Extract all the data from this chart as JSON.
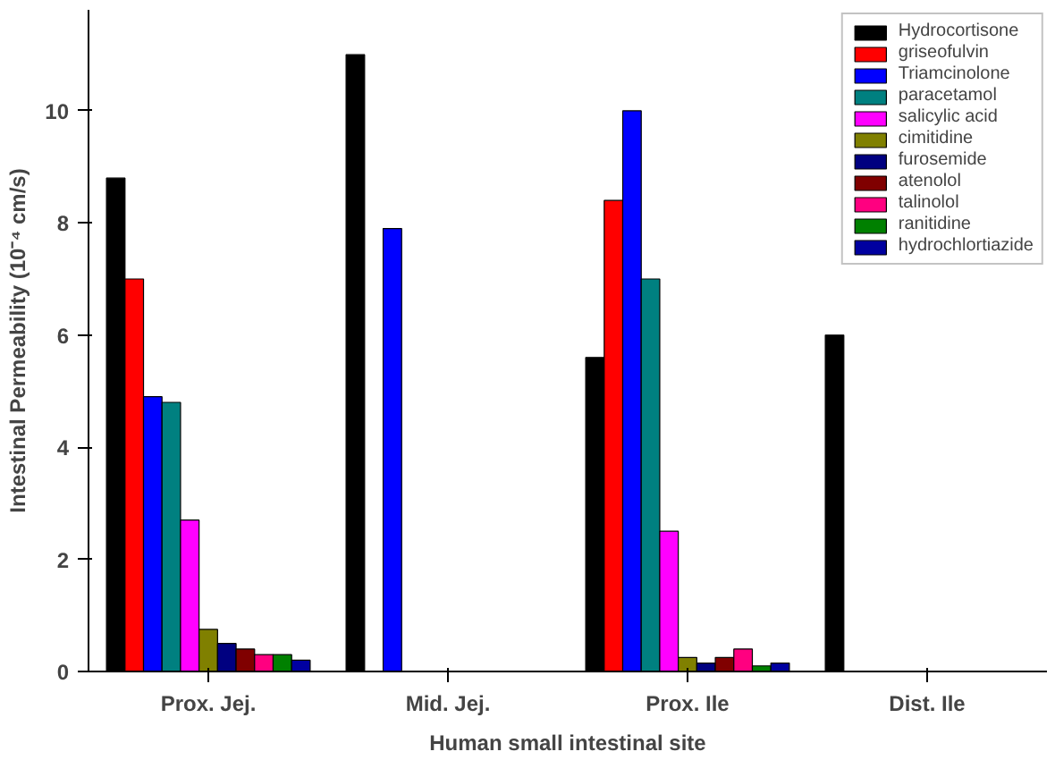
{
  "chart_data": {
    "type": "bar",
    "xlabel": "Human small intestinal site",
    "ylabel": "Intestinal Permeability (10⁻⁴ cm/s)",
    "categories": [
      "Prox. Jej.",
      "Mid. Jej.",
      "Prox. Ile",
      "Dist. Ile"
    ],
    "ylim": [
      0,
      11.8
    ],
    "yticks": [
      0,
      2,
      4,
      6,
      8,
      10
    ],
    "grid": false,
    "legend": "top right",
    "series": [
      {
        "name": "Hydrocortisone",
        "color": "#000000",
        "values": [
          8.8,
          11.0,
          5.6,
          6.0
        ]
      },
      {
        "name": "griseofulvin",
        "color": "#ff0000",
        "values": [
          7.0,
          null,
          8.4,
          null
        ]
      },
      {
        "name": "Triamcinolone",
        "color": "#0000ff",
        "values": [
          4.9,
          7.9,
          10.0,
          null
        ]
      },
      {
        "name": "paracetamol",
        "color": "#008080",
        "values": [
          4.8,
          null,
          7.0,
          null
        ]
      },
      {
        "name": "salicylic acid",
        "color": "#ff00ff",
        "values": [
          2.7,
          null,
          2.5,
          null
        ]
      },
      {
        "name": "cimitidine",
        "color": "#808000",
        "values": [
          0.75,
          null,
          0.25,
          null
        ]
      },
      {
        "name": "furosemide",
        "color": "#000080",
        "values": [
          0.5,
          null,
          0.15,
          null
        ]
      },
      {
        "name": "atenolol",
        "color": "#800000",
        "values": [
          0.4,
          null,
          0.25,
          null
        ]
      },
      {
        "name": "talinolol",
        "color": "#ff0080",
        "values": [
          0.3,
          null,
          0.4,
          null
        ]
      },
      {
        "name": "ranitidine",
        "color": "#008000",
        "values": [
          0.3,
          null,
          0.1,
          null
        ]
      },
      {
        "name": "hydrochlortiazide",
        "color": "#0000a0",
        "values": [
          0.2,
          null,
          0.15,
          null
        ]
      }
    ]
  }
}
